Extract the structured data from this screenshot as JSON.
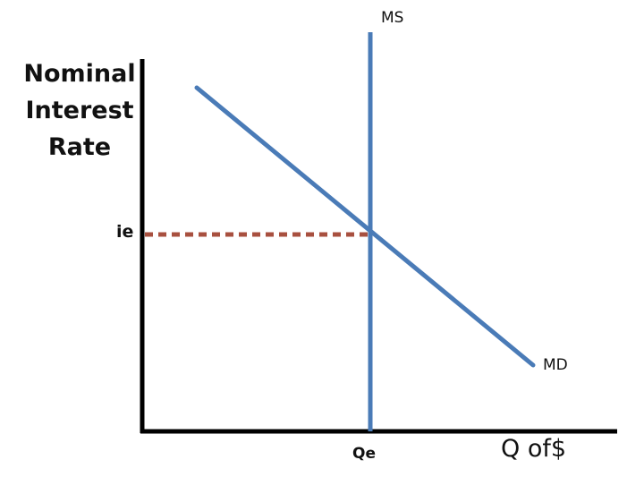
{
  "diagram": {
    "y_axis_label": [
      "Nominal",
      "Interest",
      "Rate"
    ],
    "x_axis_label": "Q of$",
    "equilibrium_rate_label": "ie",
    "equilibrium_quantity_label": "Qe",
    "curves": [
      {
        "name": "MS",
        "kind": "money supply",
        "shape": "vertical"
      },
      {
        "name": "MD",
        "kind": "money demand",
        "shape": "downward-sloping"
      }
    ],
    "equilibrium_guide": "dotted horizontal line from ie to intersection",
    "colors": {
      "curve": "#4a7bb7",
      "axis": "#000000",
      "guide": "#a8503f",
      "text": "#111111"
    }
  }
}
